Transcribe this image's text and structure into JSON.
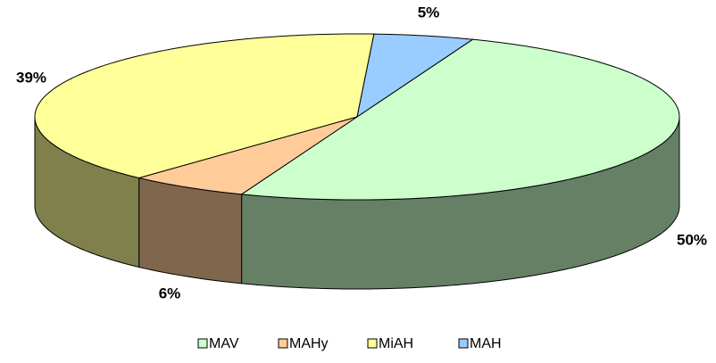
{
  "chart_data": {
    "type": "pie",
    "categories": [
      "MAV",
      "MAHy",
      "MiAH",
      "MAH"
    ],
    "values": [
      50,
      6,
      39,
      5
    ],
    "value_labels": [
      "50%",
      "6%",
      "39%",
      "5%"
    ],
    "colors": [
      "#ccffcc",
      "#ffcc99",
      "#ffff99",
      "#99ccff"
    ],
    "legend": "bottom",
    "3d": true
  }
}
